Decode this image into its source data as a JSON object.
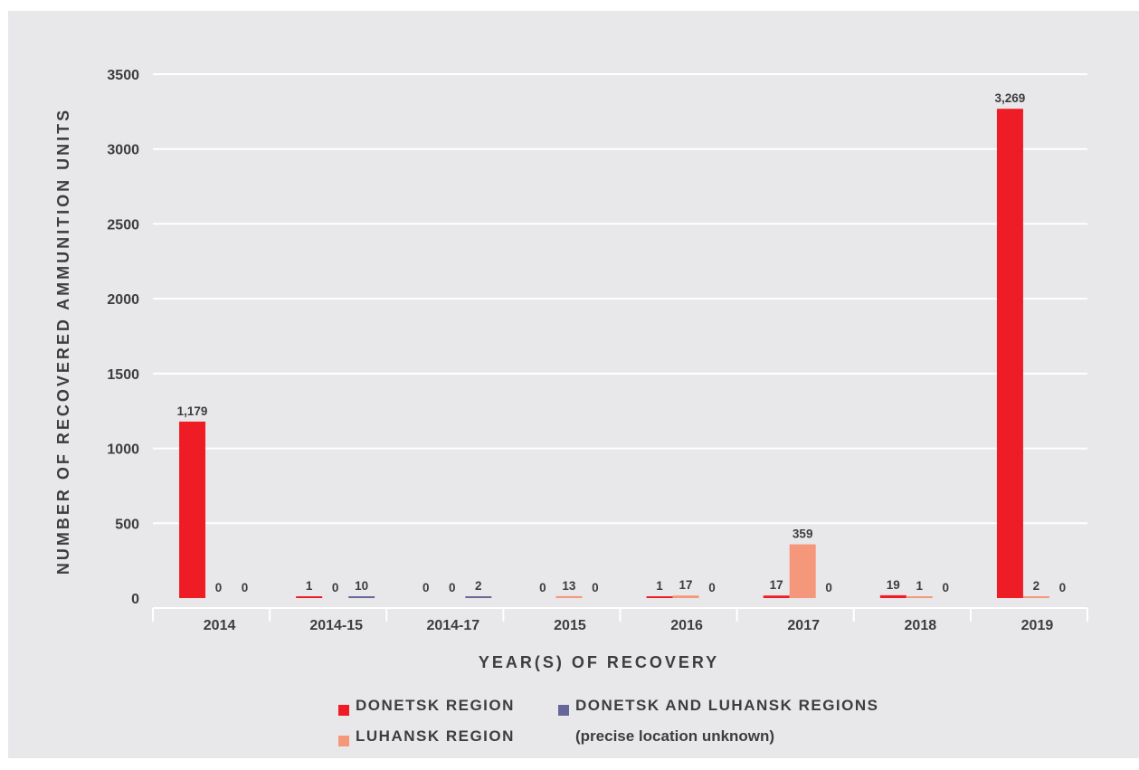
{
  "chart_data": {
    "type": "bar",
    "categories": [
      "2014",
      "2014-15",
      "2014-17",
      "2015",
      "2016",
      "2017",
      "2018",
      "2019"
    ],
    "series": [
      {
        "name": "DONETSK REGION",
        "color": "#ee1c24",
        "values": [
          1179,
          1,
          0,
          0,
          1,
          17,
          19,
          3269
        ],
        "labels": [
          "1,179",
          "1",
          "0",
          "0",
          "1",
          "17",
          "19",
          "3,269"
        ]
      },
      {
        "name": "LUHANSK REGION",
        "color": "#f5977a",
        "values": [
          0,
          0,
          0,
          13,
          17,
          359,
          1,
          2
        ],
        "labels": [
          "0",
          "0",
          "0",
          "13",
          "17",
          "359",
          "1",
          "2"
        ]
      },
      {
        "name": "DONETSK AND LUHANSK REGIONS",
        "sub": "(precise location unknown)",
        "color": "#66669a",
        "values": [
          0,
          10,
          2,
          0,
          0,
          0,
          0,
          0
        ],
        "labels": [
          "0",
          "10",
          "2",
          "0",
          "0",
          "0",
          "0",
          "0"
        ]
      }
    ],
    "xlabel": "YEAR(S) OF RECOVERY",
    "ylabel": "NUMBER OF RECOVERED AMMUNITION UNITS",
    "ylim": [
      0,
      3500
    ],
    "yticks": [
      "0",
      "500",
      "1000",
      "1500",
      "2000",
      "2500",
      "3000",
      "3500"
    ],
    "grid": true,
    "legend_position": "bottom"
  }
}
